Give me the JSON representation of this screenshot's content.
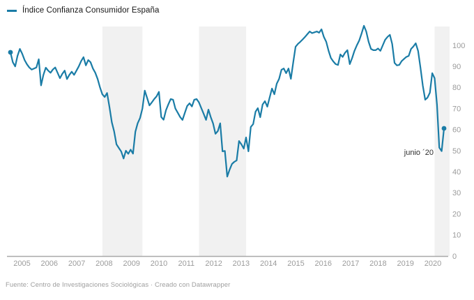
{
  "legend": {
    "label": "Índice Confianza Consumidor España"
  },
  "annotation": {
    "label": "junio ´20"
  },
  "footer": {
    "text": "Fuente: Centro de Investigaciones Sociológicas · Creado con Datawrapper"
  },
  "colors": {
    "line": "#1a7ca6",
    "band": "#f1f1f1",
    "axis": "#a8a8a8",
    "tick_label": "#9b9b9b",
    "annotation_text": "#2e2e2e",
    "legend_text": "#161616",
    "footer_text": "#9e9e9e"
  },
  "chart_data": {
    "type": "line",
    "title": "Índice Confianza Consumidor España",
    "x_unit": "month",
    "start_month": "2005-02",
    "end_month": "2020-06",
    "x_ticks": [
      2005,
      2006,
      2007,
      2008,
      2009,
      2010,
      2011,
      2012,
      2013,
      2014,
      2015,
      2016,
      2017,
      2018,
      2019,
      2020
    ],
    "y_ticks": [
      0,
      10,
      20,
      30,
      40,
      50,
      60,
      70,
      80,
      90,
      100
    ],
    "ylim": [
      0,
      110
    ],
    "grid": false,
    "legend_position": "top-left",
    "recession_bands": [
      {
        "from": "2008-05",
        "to": "2009-10"
      },
      {
        "from": "2011-10",
        "to": "2013-06"
      },
      {
        "from": "2020-02",
        "to": null
      }
    ],
    "markers": {
      "first_point": true,
      "last_point": true
    },
    "last_value": 60.6,
    "values": [
      96.7,
      92,
      90,
      95,
      98.3,
      96,
      93,
      91,
      89.5,
      88.5,
      89,
      89.5,
      93.4,
      81,
      86,
      89.4,
      88,
      87,
      88.5,
      89.5,
      87,
      84.4,
      86.5,
      88,
      84,
      86,
      87.5,
      86,
      88,
      90,
      92.5,
      94.4,
      90.5,
      93,
      92,
      89,
      87,
      84,
      80,
      76.8,
      75.5,
      77.4,
      70.8,
      63.5,
      59.2,
      53,
      51.3,
      49.6,
      46.3,
      50,
      48.5,
      50.5,
      48.6,
      59,
      63,
      65.5,
      70,
      78.5,
      75,
      71.5,
      72.9,
      74.5,
      75.8,
      77.9,
      66,
      64.7,
      69.2,
      72,
      74.5,
      74.2,
      70,
      68,
      66,
      64.6,
      68,
      71.2,
      72.5,
      71,
      74.2,
      74.5,
      72.9,
      70.2,
      67.5,
      64.6,
      69.5,
      66,
      62.9,
      58,
      59.3,
      63,
      49.7,
      49.9,
      37.7,
      41,
      43.7,
      44.7,
      45.4,
      54.6,
      53,
      51,
      56.3,
      49.7,
      61.3,
      62.6,
      68.5,
      70.2,
      65.9,
      71.9,
      73.5,
      70.9,
      75.2,
      79.5,
      76.8,
      81.8,
      84.1,
      88.4,
      89,
      86.8,
      89,
      84.1,
      92,
      99.3,
      100.7,
      101.7,
      102.8,
      104,
      105.3,
      106.6,
      105.8,
      106.2,
      106.6,
      106,
      107.6,
      104,
      101.7,
      97.4,
      94,
      92.4,
      91.1,
      90.7,
      95.7,
      94.5,
      96.5,
      97.7,
      91.1,
      94,
      97.4,
      100,
      102.3,
      105.6,
      109.3,
      106.6,
      101.7,
      98.3,
      97.7,
      97.7,
      98.5,
      97.4,
      100,
      102.6,
      104,
      105,
      100.7,
      91.7,
      90.5,
      90.7,
      92.5,
      93.5,
      94.5,
      95,
      98.3,
      99.5,
      101,
      97.4,
      89.4,
      80.8,
      74.2,
      75.2,
      77.5,
      86.8,
      84.4,
      71.9,
      51.5,
      49.8,
      60.6
    ]
  }
}
